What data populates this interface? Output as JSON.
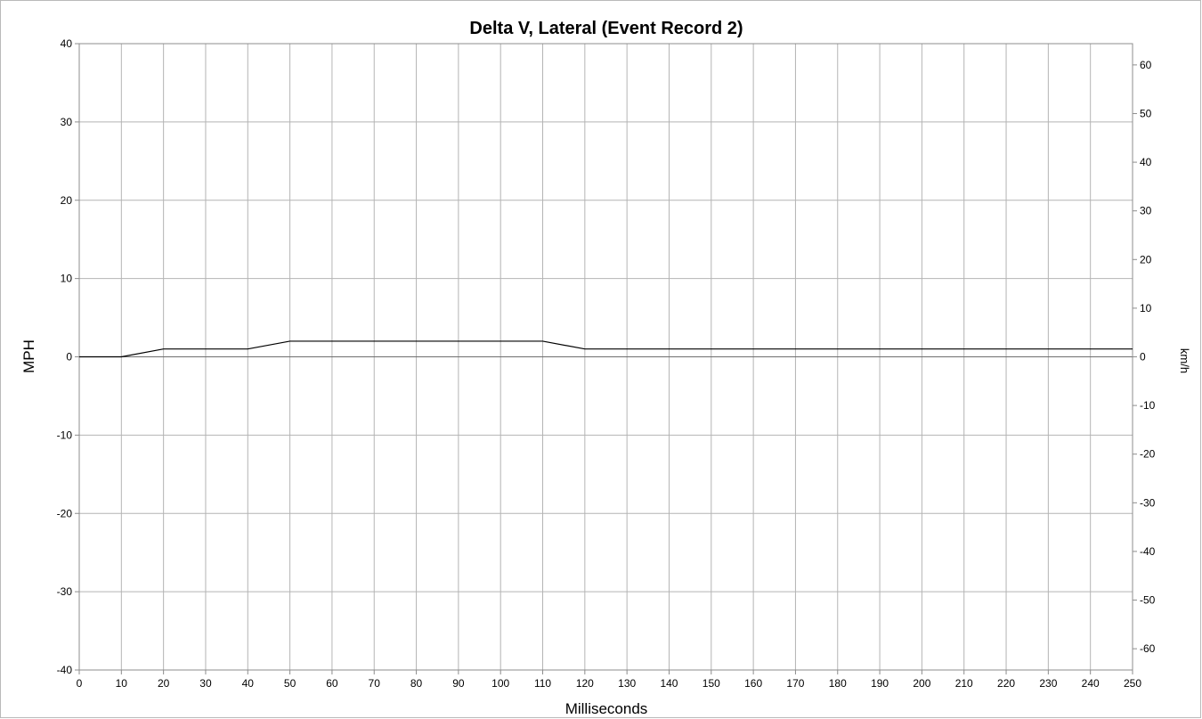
{
  "chart_data": {
    "type": "line",
    "title": "Delta V, Lateral (Event Record 2)",
    "xlabel": "Milliseconds",
    "ylabel": "MPH",
    "y2label": "km/h",
    "xlim": [
      0,
      250
    ],
    "ylim": [
      -40,
      40
    ],
    "y2lim": [
      -64.37,
      64.37
    ],
    "x_ticks": [
      0,
      10,
      20,
      30,
      40,
      50,
      60,
      70,
      80,
      90,
      100,
      110,
      120,
      130,
      140,
      150,
      160,
      170,
      180,
      190,
      200,
      210,
      220,
      230,
      240,
      250
    ],
    "y_ticks": [
      -40,
      -30,
      -20,
      -10,
      0,
      10,
      20,
      30,
      40
    ],
    "y2_ticks": [
      -60,
      -50,
      -40,
      -30,
      -20,
      -10,
      0,
      10,
      20,
      30,
      40,
      50,
      60
    ],
    "grid": true,
    "series": [
      {
        "color": "#000000",
        "x": [
          0,
          10,
          20,
          30,
          40,
          50,
          60,
          70,
          80,
          90,
          100,
          110,
          120,
          130,
          140,
          150,
          160,
          170,
          180,
          190,
          200,
          210,
          220,
          230,
          240,
          250
        ],
        "y": [
          0,
          0,
          1,
          1,
          1,
          2,
          2,
          2,
          2,
          2,
          2,
          2,
          1,
          1,
          1,
          1,
          1,
          1,
          1,
          1,
          1,
          1,
          1,
          1,
          1,
          1
        ]
      }
    ]
  }
}
